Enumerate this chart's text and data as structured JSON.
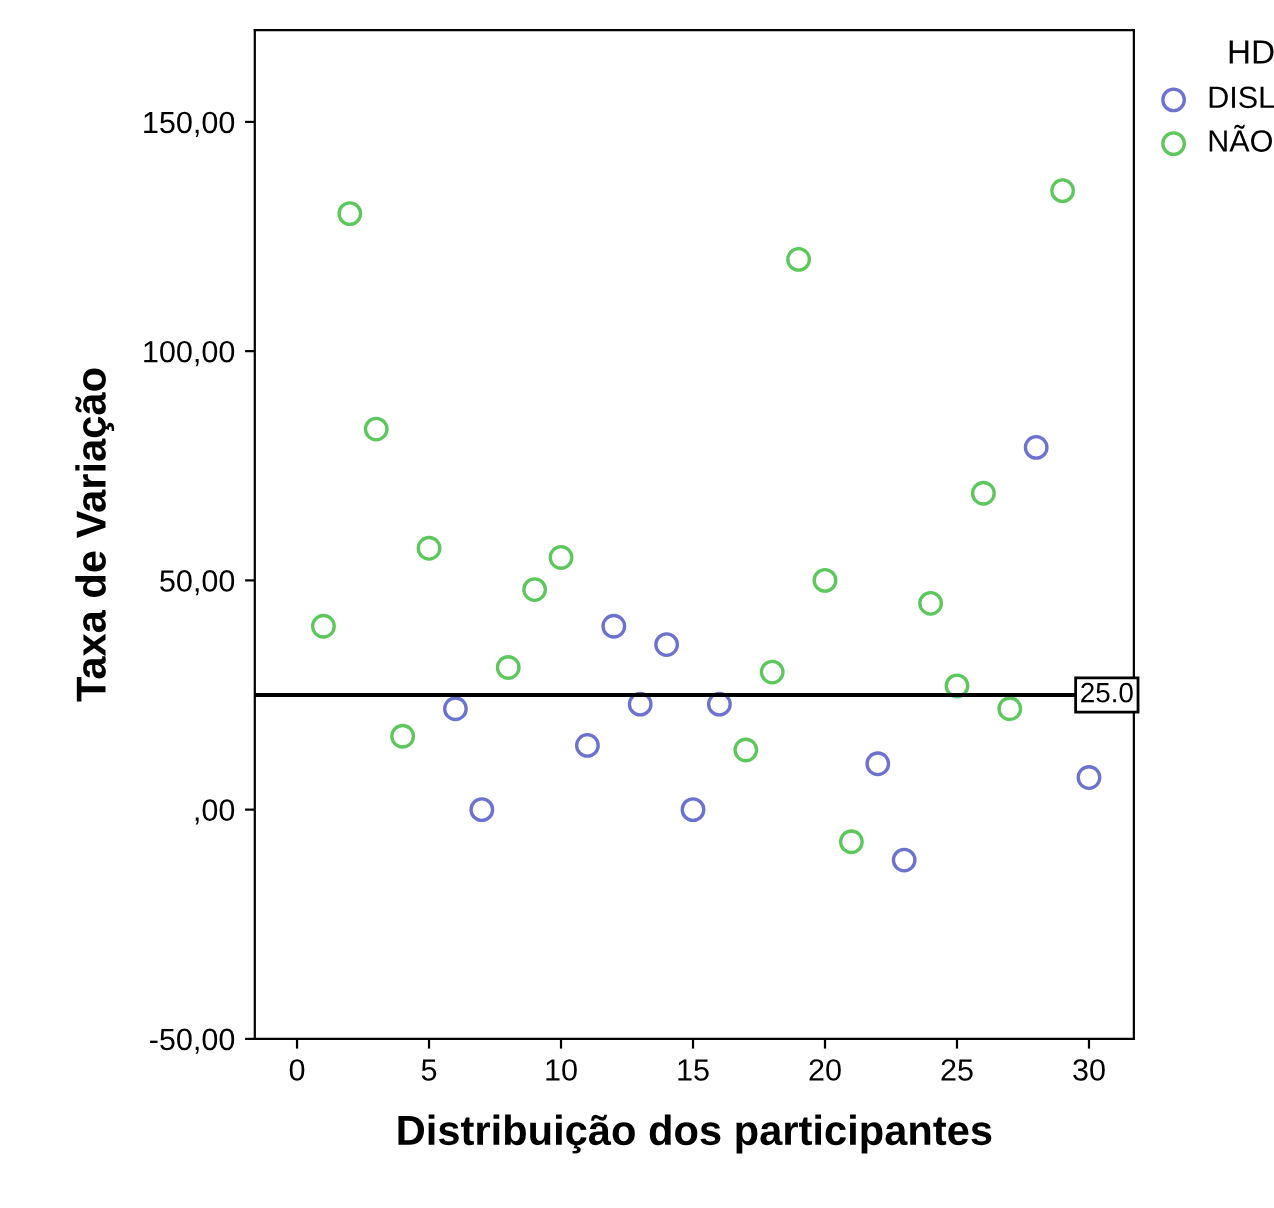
{
  "chart_data": {
    "type": "scatter",
    "xlabel": "Distribuição dos participantes",
    "ylabel": "Taxa de Variação",
    "legend_title": "HD",
    "legend": "top right",
    "marker": "circle",
    "grid": false,
    "xlim": [
      -1.6,
      31.7
    ],
    "xticks": [
      0,
      5,
      10,
      15,
      20,
      25,
      30
    ],
    "ylim": [
      -50,
      170
    ],
    "yticks": [
      {
        "value": -50,
        "label": "-50,00"
      },
      {
        "value": 0,
        "label": ",00"
      },
      {
        "value": 50,
        "label": "50,00"
      },
      {
        "value": 100,
        "label": "100,00"
      },
      {
        "value": 150,
        "label": "150,00"
      }
    ],
    "ref_lines": [
      {
        "axis": "y",
        "value": 25,
        "label": "25.0",
        "color": "#000000"
      }
    ],
    "series": [
      {
        "name": "DISL",
        "color": "#6b72d0",
        "x": [
          6,
          7,
          11,
          12,
          13,
          14,
          15,
          16,
          22,
          23,
          28,
          30
        ],
        "values": [
          22,
          0,
          14,
          40,
          23,
          36,
          0,
          23,
          10,
          -11,
          79,
          7
        ]
      },
      {
        "name": "NÃO",
        "color": "#5cc85c",
        "x": [
          1,
          2,
          3,
          4,
          5,
          8,
          9,
          10,
          17,
          18,
          19,
          20,
          21,
          24,
          25,
          26,
          27,
          29
        ],
        "values": [
          40,
          130,
          83,
          16,
          57,
          31,
          48,
          55,
          13,
          30,
          120,
          50,
          -7,
          45,
          27,
          69,
          22,
          135
        ]
      }
    ]
  }
}
